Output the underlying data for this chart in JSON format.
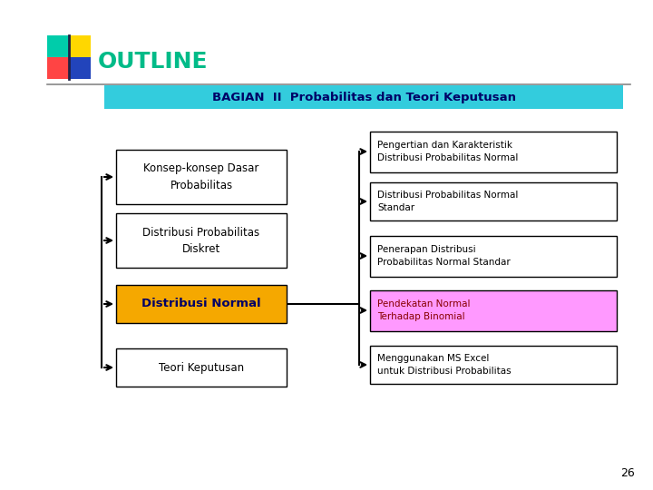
{
  "title": "OUTLINE",
  "title_color": "#00BB88",
  "bg_color": "#FFFFFF",
  "header_text": "BAGIAN  II  Probabilitas dan Teori Keputusan",
  "header_bg": "#33CCDD",
  "header_text_color": "#000066",
  "left_boxes": [
    {
      "text": "Konsep-konsep Dasar\nProbabilitas",
      "bg": "#FFFFFF",
      "text_color": "#000000",
      "bold": false
    },
    {
      "text": "Distribusi Probabilitas\nDiskret",
      "bg": "#FFFFFF",
      "text_color": "#000000",
      "bold": false
    },
    {
      "text": "Distribusi Normal",
      "bg": "#F5A800",
      "text_color": "#000066",
      "bold": true
    },
    {
      "text": "Teori Keputusan",
      "bg": "#FFFFFF",
      "text_color": "#000000",
      "bold": false
    }
  ],
  "right_boxes": [
    {
      "text": "Pengertian dan Karakteristik\nDistribusi Probabilitas Normal",
      "bg": "#FFFFFF",
      "text_color": "#000000"
    },
    {
      "text": "Distribusi Probabilitas Normal\nStandar",
      "bg": "#FFFFFF",
      "text_color": "#000000"
    },
    {
      "text": "Penerapan Distribusi\nProbabilitas Normal Standar",
      "bg": "#FFFFFF",
      "text_color": "#000000"
    },
    {
      "text": "Pendekatan Normal\nTerhadap Binomial",
      "bg": "#FF99FF",
      "text_color": "#880000"
    },
    {
      "text": "Menggunakan MS Excel\nuntuk Distribusi Probabilitas",
      "bg": "#FFFFFF",
      "text_color": "#000000"
    }
  ],
  "page_number": "26",
  "deco_yellow": "#FFD700",
  "deco_red": "#FF4444",
  "deco_blue": "#2244BB",
  "deco_teal": "#00CCAA",
  "line_color": "#888888"
}
